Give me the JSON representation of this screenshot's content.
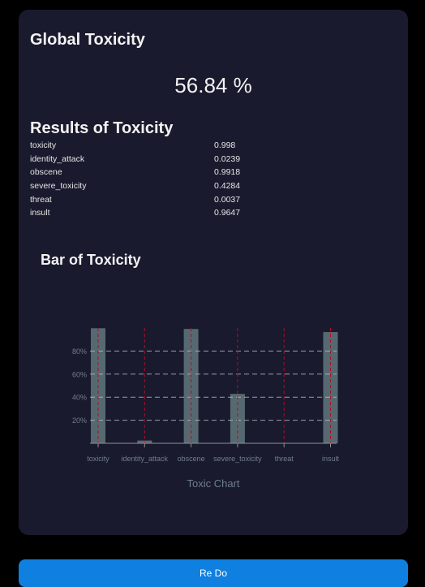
{
  "global": {
    "title": "Global Toxicity",
    "value": "56.84 %"
  },
  "results": {
    "title": "Results of Toxicity",
    "rows": [
      {
        "label": "toxicity",
        "score": "0.998"
      },
      {
        "label": "identity_attack",
        "score": "0.0239"
      },
      {
        "label": "obscene",
        "score": "0.9918"
      },
      {
        "label": "severe_toxicity",
        "score": "0.4284"
      },
      {
        "label": "threat",
        "score": "0.0037"
      },
      {
        "label": "insult",
        "score": "0.9647"
      }
    ]
  },
  "chart_section": {
    "title": "Bar of Toxicity"
  },
  "chart_data": {
    "type": "bar",
    "categories": [
      "toxicity",
      "identity_attack",
      "obscene",
      "severe_toxicity",
      "threat",
      "insult"
    ],
    "values": [
      0.998,
      0.0239,
      0.9918,
      0.4284,
      0.0037,
      0.9647
    ],
    "y_tick_labels": [
      "20%",
      "40%",
      "60%",
      "80%"
    ],
    "y_tick_values": [
      0.2,
      0.4,
      0.6,
      0.8
    ],
    "ylim": [
      0,
      1
    ],
    "xlabel": "Toxic Chart",
    "ylabel": "",
    "grid": true,
    "colors": {
      "bar": "#5d7278",
      "grid": "#c0c8cc",
      "category_line": "#a8102a",
      "axis": "#8a9298",
      "tick_text": "#6e7f88"
    }
  },
  "actions": {
    "redo_label": "Re Do"
  }
}
